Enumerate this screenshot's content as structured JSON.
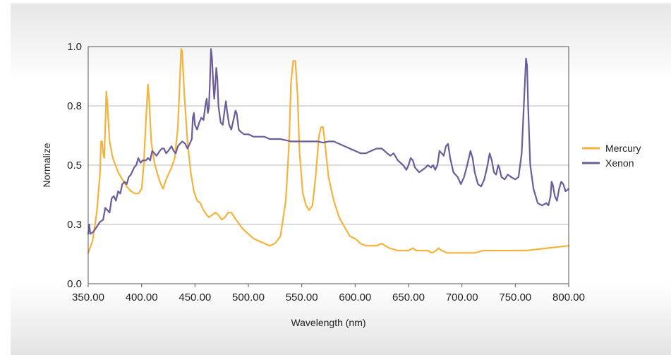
{
  "chart_data": {
    "type": "line",
    "title": "",
    "xlabel": "Wavelength (nm)",
    "ylabel": "Normalize",
    "xlim": [
      350,
      800
    ],
    "ylim": [
      0,
      1.0
    ],
    "x_ticks": [
      350,
      400,
      450,
      500,
      550,
      600,
      650,
      700,
      750,
      800
    ],
    "x_tick_labels": [
      "350.00",
      "400.00",
      "450.00",
      "500.00",
      "550.00",
      "600.00",
      "650.00",
      "700.00",
      "750.00",
      "800.00"
    ],
    "y_ticks": [
      0.0,
      0.25,
      0.5,
      0.75,
      1.0
    ],
    "y_tick_labels": [
      "0.0",
      "0.3",
      "0.5",
      "0.8",
      "1.0"
    ],
    "grid": "horizontal",
    "legend_position": "right",
    "series": [
      {
        "name": "Mercury",
        "color": "#f6b23c",
        "points": [
          [
            350,
            0.13
          ],
          [
            354,
            0.18
          ],
          [
            358,
            0.3
          ],
          [
            361,
            0.46
          ],
          [
            362,
            0.6
          ],
          [
            363,
            0.6
          ],
          [
            364,
            0.55
          ],
          [
            365,
            0.53
          ],
          [
            366,
            0.66
          ],
          [
            367,
            0.81
          ],
          [
            368,
            0.76
          ],
          [
            370,
            0.6
          ],
          [
            373,
            0.53
          ],
          [
            378,
            0.47
          ],
          [
            382,
            0.44
          ],
          [
            386,
            0.41
          ],
          [
            390,
            0.39
          ],
          [
            394,
            0.38
          ],
          [
            397,
            0.38
          ],
          [
            400,
            0.4
          ],
          [
            402,
            0.5
          ],
          [
            404,
            0.68
          ],
          [
            406,
            0.84
          ],
          [
            407,
            0.78
          ],
          [
            409,
            0.6
          ],
          [
            412,
            0.51
          ],
          [
            415,
            0.46
          ],
          [
            418,
            0.42
          ],
          [
            420,
            0.4
          ],
          [
            423,
            0.44
          ],
          [
            426,
            0.47
          ],
          [
            428,
            0.49
          ],
          [
            431,
            0.53
          ],
          [
            434,
            0.66
          ],
          [
            436,
            0.87
          ],
          [
            437,
            0.99
          ],
          [
            438,
            0.98
          ],
          [
            440,
            0.8
          ],
          [
            443,
            0.6
          ],
          [
            446,
            0.47
          ],
          [
            449,
            0.39
          ],
          [
            452,
            0.35
          ],
          [
            455,
            0.34
          ],
          [
            458,
            0.31
          ],
          [
            461,
            0.29
          ],
          [
            463,
            0.28
          ],
          [
            466,
            0.29
          ],
          [
            469,
            0.3
          ],
          [
            472,
            0.29
          ],
          [
            475,
            0.27
          ],
          [
            478,
            0.28
          ],
          [
            481,
            0.3
          ],
          [
            484,
            0.3
          ],
          [
            487,
            0.28
          ],
          [
            490,
            0.26
          ],
          [
            495,
            0.23
          ],
          [
            500,
            0.21
          ],
          [
            505,
            0.19
          ],
          [
            510,
            0.18
          ],
          [
            515,
            0.17
          ],
          [
            520,
            0.16
          ],
          [
            525,
            0.17
          ],
          [
            530,
            0.2
          ],
          [
            535,
            0.35
          ],
          [
            538,
            0.58
          ],
          [
            540,
            0.85
          ],
          [
            542,
            0.94
          ],
          [
            544,
            0.94
          ],
          [
            546,
            0.8
          ],
          [
            548,
            0.55
          ],
          [
            551,
            0.38
          ],
          [
            554,
            0.33
          ],
          [
            557,
            0.31
          ],
          [
            560,
            0.33
          ],
          [
            563,
            0.45
          ],
          [
            566,
            0.62
          ],
          [
            568,
            0.66
          ],
          [
            570,
            0.66
          ],
          [
            572,
            0.58
          ],
          [
            575,
            0.45
          ],
          [
            580,
            0.35
          ],
          [
            585,
            0.28
          ],
          [
            590,
            0.24
          ],
          [
            595,
            0.2
          ],
          [
            600,
            0.19
          ],
          [
            605,
            0.17
          ],
          [
            610,
            0.16
          ],
          [
            615,
            0.16
          ],
          [
            620,
            0.16
          ],
          [
            625,
            0.17
          ],
          [
            628,
            0.16
          ],
          [
            632,
            0.15
          ],
          [
            640,
            0.14
          ],
          [
            650,
            0.14
          ],
          [
            654,
            0.15
          ],
          [
            657,
            0.14
          ],
          [
            662,
            0.14
          ],
          [
            668,
            0.14
          ],
          [
            672,
            0.13
          ],
          [
            676,
            0.14
          ],
          [
            678,
            0.15
          ],
          [
            681,
            0.14
          ],
          [
            686,
            0.13
          ],
          [
            695,
            0.13
          ],
          [
            705,
            0.13
          ],
          [
            712,
            0.13
          ],
          [
            720,
            0.14
          ],
          [
            725,
            0.14
          ],
          [
            730,
            0.14
          ],
          [
            735,
            0.14
          ],
          [
            740,
            0.14
          ],
          [
            750,
            0.14
          ],
          [
            760,
            0.14
          ],
          [
            770,
            0.145
          ],
          [
            780,
            0.15
          ],
          [
            790,
            0.155
          ],
          [
            800,
            0.16
          ]
        ]
      },
      {
        "name": "Xenon",
        "color": "#6b5c9a",
        "points": [
          [
            350,
            0.21
          ],
          [
            351,
            0.25
          ],
          [
            352,
            0.21
          ],
          [
            355,
            0.22
          ],
          [
            358,
            0.24
          ],
          [
            361,
            0.26
          ],
          [
            364,
            0.27
          ],
          [
            366,
            0.32
          ],
          [
            368,
            0.31
          ],
          [
            370,
            0.3
          ],
          [
            372,
            0.36
          ],
          [
            374,
            0.37
          ],
          [
            376,
            0.35
          ],
          [
            378,
            0.39
          ],
          [
            380,
            0.38
          ],
          [
            382,
            0.42
          ],
          [
            384,
            0.43
          ],
          [
            386,
            0.42
          ],
          [
            388,
            0.45
          ],
          [
            390,
            0.46
          ],
          [
            393,
            0.49
          ],
          [
            395,
            0.5
          ],
          [
            397,
            0.53
          ],
          [
            399,
            0.51
          ],
          [
            401,
            0.52
          ],
          [
            404,
            0.52
          ],
          [
            406,
            0.53
          ],
          [
            408,
            0.52
          ],
          [
            410,
            0.56
          ],
          [
            412,
            0.55
          ],
          [
            414,
            0.54
          ],
          [
            417,
            0.56
          ],
          [
            419,
            0.57
          ],
          [
            421,
            0.57
          ],
          [
            423,
            0.55
          ],
          [
            425,
            0.56
          ],
          [
            428,
            0.58
          ],
          [
            430,
            0.56
          ],
          [
            432,
            0.55
          ],
          [
            434,
            0.58
          ],
          [
            436,
            0.59
          ],
          [
            438,
            0.6
          ],
          [
            441,
            0.59
          ],
          [
            443,
            0.57
          ],
          [
            445,
            0.59
          ],
          [
            447,
            0.61
          ],
          [
            448,
            0.7
          ],
          [
            449,
            0.72
          ],
          [
            450,
            0.67
          ],
          [
            452,
            0.65
          ],
          [
            454,
            0.68
          ],
          [
            456,
            0.7
          ],
          [
            458,
            0.69
          ],
          [
            460,
            0.76
          ],
          [
            461,
            0.78
          ],
          [
            462,
            0.72
          ],
          [
            463,
            0.74
          ],
          [
            464,
            0.85
          ],
          [
            465,
            0.99
          ],
          [
            466,
            0.95
          ],
          [
            467,
            0.85
          ],
          [
            468,
            0.78
          ],
          [
            469,
            0.84
          ],
          [
            470,
            0.91
          ],
          [
            471,
            0.86
          ],
          [
            472,
            0.75
          ],
          [
            474,
            0.68
          ],
          [
            476,
            0.67
          ],
          [
            478,
            0.74
          ],
          [
            479,
            0.77
          ],
          [
            480,
            0.73
          ],
          [
            482,
            0.67
          ],
          [
            484,
            0.65
          ],
          [
            486,
            0.69
          ],
          [
            488,
            0.73
          ],
          [
            489,
            0.72
          ],
          [
            491,
            0.65
          ],
          [
            493,
            0.64
          ],
          [
            496,
            0.63
          ],
          [
            500,
            0.63
          ],
          [
            505,
            0.62
          ],
          [
            510,
            0.62
          ],
          [
            515,
            0.62
          ],
          [
            520,
            0.61
          ],
          [
            525,
            0.61
          ],
          [
            530,
            0.61
          ],
          [
            535,
            0.605
          ],
          [
            540,
            0.6
          ],
          [
            545,
            0.6
          ],
          [
            550,
            0.6
          ],
          [
            555,
            0.6
          ],
          [
            560,
            0.6
          ],
          [
            565,
            0.6
          ],
          [
            570,
            0.595
          ],
          [
            575,
            0.6
          ],
          [
            580,
            0.6
          ],
          [
            585,
            0.59
          ],
          [
            590,
            0.58
          ],
          [
            595,
            0.57
          ],
          [
            600,
            0.56
          ],
          [
            605,
            0.55
          ],
          [
            610,
            0.55
          ],
          [
            615,
            0.56
          ],
          [
            620,
            0.57
          ],
          [
            625,
            0.57
          ],
          [
            630,
            0.55
          ],
          [
            633,
            0.54
          ],
          [
            636,
            0.55
          ],
          [
            640,
            0.52
          ],
          [
            645,
            0.5
          ],
          [
            648,
            0.48
          ],
          [
            650,
            0.5
          ],
          [
            652,
            0.53
          ],
          [
            654,
            0.52
          ],
          [
            656,
            0.49
          ],
          [
            660,
            0.47
          ],
          [
            663,
            0.48
          ],
          [
            666,
            0.49
          ],
          [
            668,
            0.5
          ],
          [
            671,
            0.49
          ],
          [
            673,
            0.5
          ],
          [
            675,
            0.48
          ],
          [
            677,
            0.5
          ],
          [
            679,
            0.56
          ],
          [
            681,
            0.55
          ],
          [
            683,
            0.54
          ],
          [
            685,
            0.58
          ],
          [
            687,
            0.59
          ],
          [
            689,
            0.53
          ],
          [
            692,
            0.47
          ],
          [
            696,
            0.45
          ],
          [
            699,
            0.42
          ],
          [
            702,
            0.45
          ],
          [
            705,
            0.5
          ],
          [
            708,
            0.56
          ],
          [
            710,
            0.53
          ],
          [
            712,
            0.47
          ],
          [
            715,
            0.42
          ],
          [
            718,
            0.41
          ],
          [
            721,
            0.44
          ],
          [
            724,
            0.5
          ],
          [
            726,
            0.55
          ],
          [
            728,
            0.52
          ],
          [
            730,
            0.47
          ],
          [
            732,
            0.46
          ],
          [
            734,
            0.5
          ],
          [
            735,
            0.49
          ],
          [
            737,
            0.45
          ],
          [
            740,
            0.44
          ],
          [
            743,
            0.46
          ],
          [
            746,
            0.45
          ],
          [
            750,
            0.44
          ],
          [
            753,
            0.45
          ],
          [
            756,
            0.55
          ],
          [
            758,
            0.75
          ],
          [
            760,
            0.95
          ],
          [
            761,
            0.92
          ],
          [
            762,
            0.75
          ],
          [
            764,
            0.5
          ],
          [
            767,
            0.4
          ],
          [
            771,
            0.34
          ],
          [
            775,
            0.33
          ],
          [
            779,
            0.34
          ],
          [
            781,
            0.33
          ],
          [
            783,
            0.37
          ],
          [
            784,
            0.43
          ],
          [
            785,
            0.42
          ],
          [
            787,
            0.37
          ],
          [
            789,
            0.35
          ],
          [
            791,
            0.4
          ],
          [
            793,
            0.43
          ],
          [
            795,
            0.42
          ],
          [
            797,
            0.39
          ],
          [
            800,
            0.4
          ]
        ]
      }
    ]
  }
}
